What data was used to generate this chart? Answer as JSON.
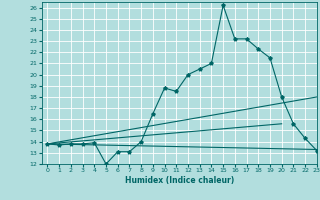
{
  "xlabel": "Humidex (Indice chaleur)",
  "xlim": [
    -0.5,
    23
  ],
  "ylim": [
    12,
    26.5
  ],
  "xticks": [
    0,
    1,
    2,
    3,
    4,
    5,
    6,
    7,
    8,
    9,
    10,
    11,
    12,
    13,
    14,
    15,
    16,
    17,
    18,
    19,
    20,
    21,
    22,
    23
  ],
  "yticks": [
    12,
    13,
    14,
    15,
    16,
    17,
    18,
    19,
    20,
    21,
    22,
    23,
    24,
    25,
    26
  ],
  "bg_color": "#b2dede",
  "line_color": "#006666",
  "grid_color": "#ffffff",
  "main_curve": {
    "x": [
      0,
      1,
      2,
      3,
      4,
      5,
      6,
      7,
      8,
      9,
      10,
      11,
      12,
      13,
      14,
      15,
      16,
      17,
      18,
      19,
      20,
      21,
      22,
      23
    ],
    "y": [
      13.8,
      13.7,
      13.8,
      13.8,
      13.9,
      12.0,
      13.1,
      13.1,
      14.0,
      16.5,
      18.8,
      18.5,
      20.0,
      20.5,
      21.0,
      26.2,
      23.2,
      23.2,
      22.3,
      21.5,
      18.0,
      15.6,
      14.3,
      13.2
    ]
  },
  "lines": [
    {
      "x": [
        0,
        23
      ],
      "y": [
        13.8,
        18.0
      ]
    },
    {
      "x": [
        0,
        23
      ],
      "y": [
        13.8,
        13.3
      ]
    },
    {
      "x": [
        0,
        20
      ],
      "y": [
        13.8,
        15.6
      ]
    }
  ]
}
